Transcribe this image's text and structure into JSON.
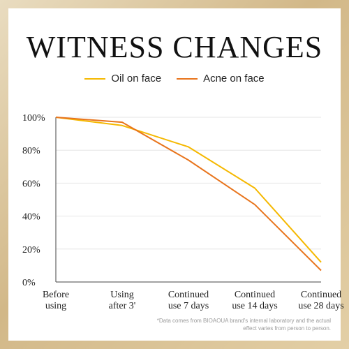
{
  "chart_data": {
    "type": "line",
    "title": "WITNESS CHANGES",
    "categories": [
      "Before using",
      "Using after 3'",
      "Continued use 7 days",
      "Continued use 14 days",
      "Continued use 28 days"
    ],
    "category_lines": [
      [
        "Before",
        "using"
      ],
      [
        "Using",
        "after 3'"
      ],
      [
        "Continued",
        "use 7 days"
      ],
      [
        "Continued",
        "use 14 days"
      ],
      [
        "Continued",
        "use 28 days"
      ]
    ],
    "series": [
      {
        "name": "Oil on face",
        "color": "#f5b800",
        "values": [
          100,
          95,
          82,
          57,
          12
        ]
      },
      {
        "name": "Acne on face",
        "color": "#e8741c",
        "values": [
          100,
          97,
          74,
          47,
          7
        ]
      }
    ],
    "ylim": [
      0,
      100
    ],
    "yticks": [
      "0%",
      "20%",
      "40%",
      "60%",
      "80%",
      "100%"
    ],
    "grid": true,
    "legend_position": "top-center"
  },
  "footnote": "*Data comes from BIOAOUA brand's internal laboratory and the actual effect varies from person to person."
}
